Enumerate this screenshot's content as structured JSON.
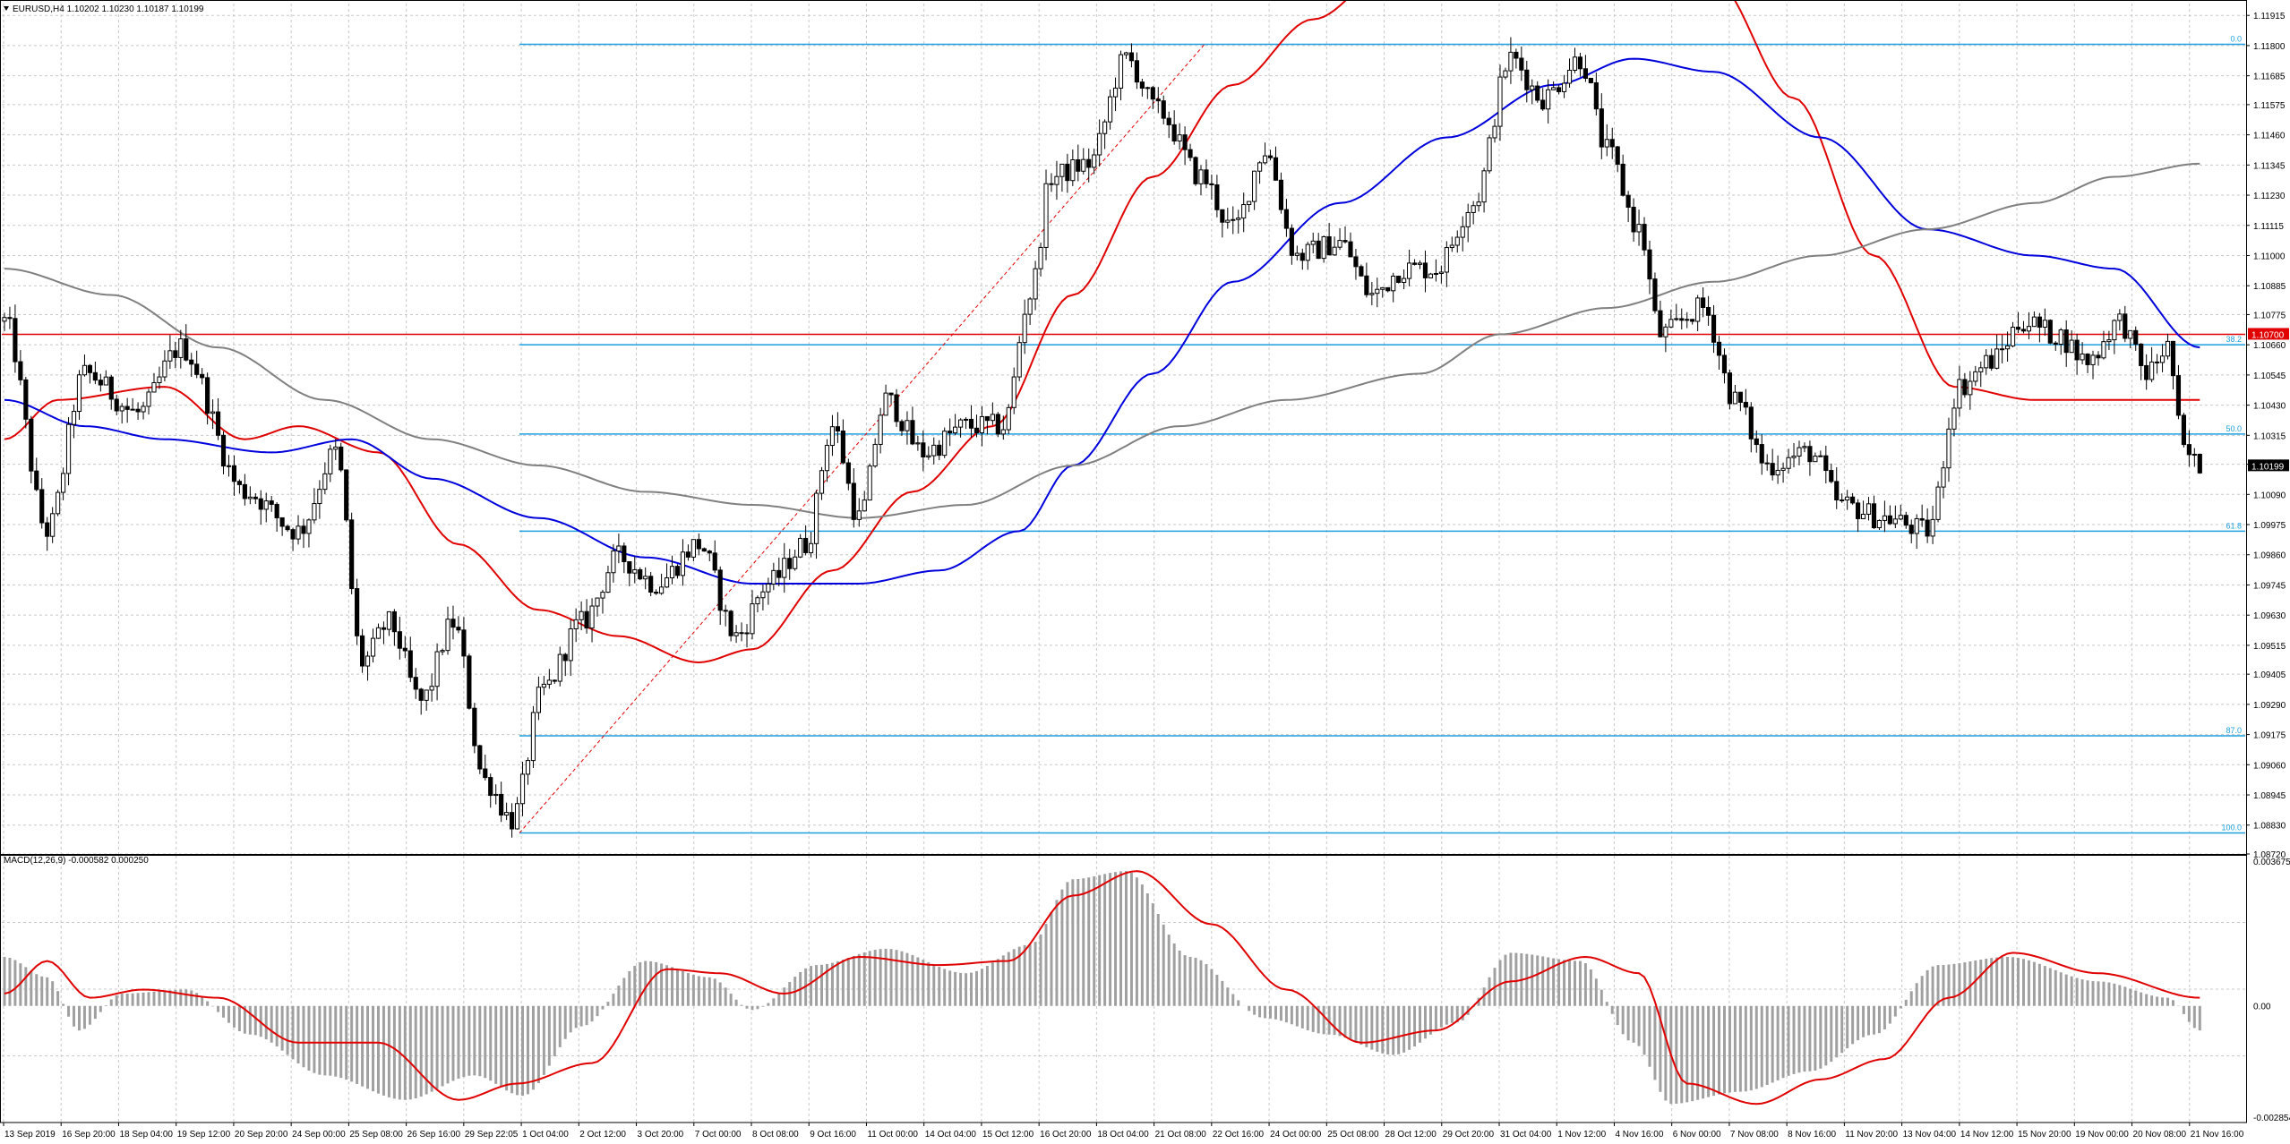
{
  "window": {
    "symbol_header": "EURUSD,H4  1.10202 1.10230 1.10187 1.10199",
    "macd_header": "MACD(12,26,9) -0.000582 0.000250"
  },
  "colors": {
    "background": "#ffffff",
    "grid": "#c8c8c8",
    "candle": "#000000",
    "ma_red": "#e00000",
    "ma_blue": "#0000dd",
    "ma_gray": "#808080",
    "fib_lines": "#1ea0e0",
    "fib_trend": "#e00000",
    "hline": "#e00000",
    "macd_hist": "#a0a0a0",
    "macd_signal": "#e00000"
  },
  "price_axis": {
    "labels": [
      "1.11915",
      "1.11800",
      "1.11685",
      "1.11575",
      "1.11460",
      "1.11345",
      "1.11230",
      "1.11115",
      "1.11000",
      "1.10885",
      "1.10775",
      "1.10660",
      "1.10545",
      "1.10430",
      "1.10315",
      "1.10205",
      "1.10090",
      "1.09975",
      "1.09860",
      "1.09745",
      "1.09630",
      "1.09515",
      "1.09405",
      "1.09290",
      "1.09175",
      "1.09060",
      "1.08945",
      "1.08830",
      "1.08720"
    ],
    "current_price_label": "1.10199",
    "hline_label": "1.10700"
  },
  "macd_axis": {
    "labels": [
      "0.003675",
      "0.00",
      "-0.002854"
    ]
  },
  "time_axis": {
    "labels": [
      "13 Sep 2019",
      "16 Sep 20:00",
      "18 Sep 04:00",
      "19 Sep 12:00",
      "20 Sep 20:00",
      "24 Sep 00:00",
      "25 Sep 08:00",
      "26 Sep 16:00",
      "29 Sep 22:05",
      "1 Oct 04:00",
      "2 Oct 12:00",
      "3 Oct 20:00",
      "7 Oct 00:00",
      "8 Oct 08:00",
      "9 Oct 16:00",
      "11 Oct 00:00",
      "14 Oct 04:00",
      "15 Oct 12:00",
      "16 Oct 20:00",
      "18 Oct 04:00",
      "21 Oct 08:00",
      "22 Oct 16:00",
      "24 Oct 00:00",
      "25 Oct 08:00",
      "28 Oct 12:00",
      "29 Oct 20:00",
      "31 Oct 04:00",
      "1 Nov 12:00",
      "4 Nov 16:00",
      "6 Nov 00:00",
      "7 Nov 08:00",
      "8 Nov 16:00",
      "11 Nov 20:00",
      "13 Nov 04:00",
      "14 Nov 12:00",
      "15 Nov 20:00",
      "19 Nov 00:00",
      "20 Nov 08:00",
      "21 Nov 16:00"
    ]
  },
  "fibonacci": {
    "levels": [
      {
        "label": "0.0",
        "price": 1.11805
      },
      {
        "label": "38.2",
        "price": 1.1066
      },
      {
        "label": "50.0",
        "price": 1.1032
      },
      {
        "label": "61.8",
        "price": 1.0995
      },
      {
        "label": "87.0",
        "price": 1.0917
      },
      {
        "label": "100.0",
        "price": 1.088
      }
    ]
  },
  "chart_data": [
    {
      "type": "candlestick",
      "title": "EURUSD,H4  1.10202 1.10230 1.10187 1.10199",
      "ylim": [
        1.0872,
        1.1196
      ],
      "bar_count": 420,
      "anchors": [
        {
          "bar": 0,
          "price": 1.1075
        },
        {
          "bar": 8,
          "price": 1.0995
        },
        {
          "bar": 15,
          "price": 1.1055
        },
        {
          "bar": 25,
          "price": 1.104
        },
        {
          "bar": 33,
          "price": 1.1065
        },
        {
          "bar": 45,
          "price": 1.101
        },
        {
          "bar": 55,
          "price": 1.0995
        },
        {
          "bar": 62,
          "price": 1.1025
        },
        {
          "bar": 67,
          "price": 1.0945
        },
        {
          "bar": 72,
          "price": 1.096
        },
        {
          "bar": 78,
          "price": 1.093
        },
        {
          "bar": 84,
          "price": 1.096
        },
        {
          "bar": 90,
          "price": 1.09
        },
        {
          "bar": 95,
          "price": 1.0885
        },
        {
          "bar": 101,
          "price": 1.0935
        },
        {
          "bar": 108,
          "price": 1.096
        },
        {
          "bar": 115,
          "price": 1.0985
        },
        {
          "bar": 122,
          "price": 1.0975
        },
        {
          "bar": 130,
          "price": 1.099
        },
        {
          "bar": 137,
          "price": 1.0955
        },
        {
          "bar": 143,
          "price": 1.0975
        },
        {
          "bar": 150,
          "price": 1.099
        },
        {
          "bar": 155,
          "price": 1.1035
        },
        {
          "bar": 160,
          "price": 1.1
        },
        {
          "bar": 165,
          "price": 1.1045
        },
        {
          "bar": 172,
          "price": 1.1025
        },
        {
          "bar": 180,
          "price": 1.1035
        },
        {
          "bar": 187,
          "price": 1.1035
        },
        {
          "bar": 192,
          "price": 1.1085
        },
        {
          "bar": 196,
          "price": 1.113
        },
        {
          "bar": 203,
          "price": 1.1135
        },
        {
          "bar": 210,
          "price": 1.1175
        },
        {
          "bar": 216,
          "price": 1.1155
        },
        {
          "bar": 224,
          "price": 1.113
        },
        {
          "bar": 230,
          "price": 1.111
        },
        {
          "bar": 236,
          "price": 1.114
        },
        {
          "bar": 242,
          "price": 1.11
        },
        {
          "bar": 250,
          "price": 1.1105
        },
        {
          "bar": 256,
          "price": 1.1085
        },
        {
          "bar": 262,
          "price": 1.1095
        },
        {
          "bar": 268,
          "price": 1.1095
        },
        {
          "bar": 275,
          "price": 1.112
        },
        {
          "bar": 282,
          "price": 1.1175
        },
        {
          "bar": 288,
          "price": 1.116
        },
        {
          "bar": 295,
          "price": 1.1175
        },
        {
          "bar": 300,
          "price": 1.114
        },
        {
          "bar": 306,
          "price": 1.111
        },
        {
          "bar": 310,
          "price": 1.107
        },
        {
          "bar": 318,
          "price": 1.108
        },
        {
          "bar": 324,
          "price": 1.1045
        },
        {
          "bar": 330,
          "price": 1.102
        },
        {
          "bar": 338,
          "price": 1.1025
        },
        {
          "bar": 344,
          "price": 1.1005
        },
        {
          "bar": 352,
          "price": 1.1
        },
        {
          "bar": 360,
          "price": 1.0995
        },
        {
          "bar": 366,
          "price": 1.105
        },
        {
          "bar": 372,
          "price": 1.106
        },
        {
          "bar": 378,
          "price": 1.1075
        },
        {
          "bar": 384,
          "price": 1.107
        },
        {
          "bar": 390,
          "price": 1.106
        },
        {
          "bar": 396,
          "price": 1.1075
        },
        {
          "bar": 401,
          "price": 1.1055
        },
        {
          "bar": 405,
          "price": 1.1065
        },
        {
          "bar": 408,
          "price": 1.1025
        },
        {
          "bar": 411,
          "price": 1.102
        }
      ],
      "moving_averages": [
        {
          "color": "red",
          "points": [
            [
              0,
              1.103
            ],
            [
              10,
              1.1045
            ],
            [
              30,
              1.105
            ],
            [
              45,
              1.103
            ],
            [
              55,
              1.1035
            ],
            [
              70,
              1.1025
            ],
            [
              85,
              1.099
            ],
            [
              100,
              1.0965
            ],
            [
              115,
              1.0955
            ],
            [
              130,
              1.0945
            ],
            [
              140,
              1.095
            ],
            [
              155,
              1.098
            ],
            [
              170,
              1.101
            ],
            [
              185,
              1.1035
            ],
            [
              200,
              1.1085
            ],
            [
              215,
              1.113
            ],
            [
              230,
              1.1165
            ],
            [
              245,
              1.119
            ],
            [
              260,
              1.121
            ],
            [
              275,
              1.1225
            ],
            [
              290,
              1.123
            ],
            [
              305,
              1.123
            ],
            [
              320,
              1.1205
            ],
            [
              335,
              1.116
            ],
            [
              350,
              1.11
            ],
            [
              365,
              1.105
            ],
            [
              380,
              1.1045
            ],
            [
              395,
              1.1045
            ],
            [
              411,
              1.1045
            ]
          ]
        },
        {
          "color": "blue",
          "points": [
            [
              0,
              1.1045
            ],
            [
              15,
              1.1035
            ],
            [
              30,
              1.103
            ],
            [
              50,
              1.1025
            ],
            [
              65,
              1.103
            ],
            [
              80,
              1.1015
            ],
            [
              100,
              1.1
            ],
            [
              120,
              1.0985
            ],
            [
              140,
              1.0975
            ],
            [
              160,
              1.0975
            ],
            [
              175,
              1.098
            ],
            [
              190,
              1.0995
            ],
            [
              200,
              1.102
            ],
            [
              215,
              1.1055
            ],
            [
              230,
              1.109
            ],
            [
              250,
              1.112
            ],
            [
              270,
              1.1145
            ],
            [
              290,
              1.1165
            ],
            [
              305,
              1.1175
            ],
            [
              320,
              1.117
            ],
            [
              340,
              1.1145
            ],
            [
              360,
              1.111
            ],
            [
              380,
              1.11
            ],
            [
              395,
              1.1095
            ],
            [
              411,
              1.1065
            ]
          ]
        },
        {
          "color": "gray",
          "points": [
            [
              0,
              1.1095
            ],
            [
              20,
              1.1085
            ],
            [
              40,
              1.1065
            ],
            [
              60,
              1.1045
            ],
            [
              80,
              1.103
            ],
            [
              100,
              1.102
            ],
            [
              120,
              1.101
            ],
            [
              140,
              1.1005
            ],
            [
              160,
              1.1
            ],
            [
              180,
              1.1005
            ],
            [
              200,
              1.102
            ],
            [
              220,
              1.1035
            ],
            [
              240,
              1.1045
            ],
            [
              265,
              1.1055
            ],
            [
              280,
              1.107
            ],
            [
              300,
              1.108
            ],
            [
              320,
              1.109
            ],
            [
              340,
              1.11
            ],
            [
              360,
              1.111
            ],
            [
              380,
              1.112
            ],
            [
              395,
              1.113
            ],
            [
              411,
              1.1135
            ]
          ]
        }
      ],
      "horizontal_lines": [
        {
          "price": 1.107,
          "label": "1.10700"
        }
      ],
      "current_price": 1.10199
    },
    {
      "type": "bar+line",
      "title": "MACD(12,26,9) -0.000582 0.000250",
      "ylim": [
        -0.002854,
        0.003675
      ],
      "histogram_anchors": [
        [
          0,
          0.0012
        ],
        [
          8,
          0.0007
        ],
        [
          14,
          -0.0006
        ],
        [
          22,
          0.0003
        ],
        [
          34,
          0.0004
        ],
        [
          46,
          -0.0007
        ],
        [
          60,
          -0.0017
        ],
        [
          75,
          -0.0023
        ],
        [
          88,
          -0.0017
        ],
        [
          97,
          -0.0022
        ],
        [
          108,
          -0.0005
        ],
        [
          120,
          0.0011
        ],
        [
          132,
          0.0007
        ],
        [
          140,
          -0.0001
        ],
        [
          152,
          0.001
        ],
        [
          165,
          0.0014
        ],
        [
          180,
          0.0008
        ],
        [
          192,
          0.0015
        ],
        [
          200,
          0.0031
        ],
        [
          210,
          0.0033
        ],
        [
          222,
          0.0012
        ],
        [
          236,
          -0.0003
        ],
        [
          248,
          -0.0007
        ],
        [
          260,
          -0.0012
        ],
        [
          272,
          -0.0004
        ],
        [
          282,
          0.0013
        ],
        [
          295,
          0.0011
        ],
        [
          305,
          -0.0009
        ],
        [
          312,
          -0.0024
        ],
        [
          325,
          -0.0021
        ],
        [
          338,
          -0.0016
        ],
        [
          350,
          -0.0007
        ],
        [
          362,
          0.001
        ],
        [
          375,
          0.0012
        ],
        [
          392,
          0.0006
        ],
        [
          405,
          0.0002
        ],
        [
          411,
          -0.0006
        ]
      ],
      "signal_anchors": [
        [
          0,
          0.0003
        ],
        [
          8,
          0.0011
        ],
        [
          16,
          0.0002
        ],
        [
          26,
          0.0004
        ],
        [
          40,
          0.0002
        ],
        [
          55,
          -0.0009
        ],
        [
          70,
          -0.0009
        ],
        [
          85,
          -0.0023
        ],
        [
          96,
          -0.0019
        ],
        [
          110,
          -0.0014
        ],
        [
          124,
          0.0009
        ],
        [
          134,
          0.0008
        ],
        [
          146,
          0.0003
        ],
        [
          160,
          0.0012
        ],
        [
          175,
          0.001
        ],
        [
          188,
          0.0011
        ],
        [
          200,
          0.0027
        ],
        [
          212,
          0.0033
        ],
        [
          226,
          0.002
        ],
        [
          240,
          0.0004
        ],
        [
          254,
          -0.0009
        ],
        [
          268,
          -0.0006
        ],
        [
          282,
          0.0006
        ],
        [
          296,
          0.0012
        ],
        [
          306,
          0.0008
        ],
        [
          315,
          -0.0019
        ],
        [
          328,
          -0.0024
        ],
        [
          340,
          -0.0018
        ],
        [
          352,
          -0.0013
        ],
        [
          364,
          0.0002
        ],
        [
          376,
          0.0013
        ],
        [
          392,
          0.0008
        ],
        [
          411,
          0.0002
        ]
      ]
    }
  ]
}
